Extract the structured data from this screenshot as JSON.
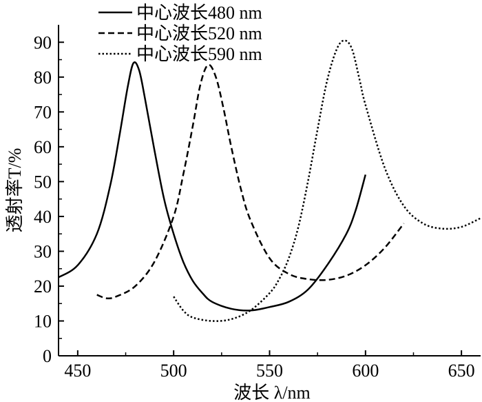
{
  "chart_data": {
    "type": "line",
    "xlabel": "波长 λ/nm",
    "ylabel": "透射率T/%",
    "xlim": [
      440,
      660
    ],
    "ylim": [
      0,
      95
    ],
    "xticks": [
      450,
      500,
      550,
      600,
      650
    ],
    "yticks": [
      0,
      10,
      20,
      30,
      40,
      50,
      60,
      70,
      80,
      90
    ],
    "legend_position": "top-left",
    "grid": false,
    "series": [
      {
        "name": "中心波长480 nm",
        "dash": "solid",
        "x": [
          440,
          450,
          460,
          467,
          472,
          476,
          479,
          482,
          485,
          490,
          495,
          500,
          505,
          510,
          515,
          520,
          530,
          540,
          550,
          560,
          570,
          580,
          590,
          595,
          600
        ],
        "y": [
          22.5,
          26,
          35,
          49,
          64,
          77,
          84,
          82,
          74,
          59,
          45,
          35,
          27,
          21.5,
          18,
          15.5,
          13.5,
          13,
          14,
          15.5,
          19,
          26,
          35,
          42,
          52
        ]
      },
      {
        "name": "中心波长520 nm",
        "dash": "dashed",
        "x": [
          460,
          465,
          470,
          480,
          490,
          500,
          505,
          510,
          514,
          518,
          522,
          526,
          530,
          535,
          540,
          550,
          560,
          570,
          580,
          590,
          600,
          610,
          620
        ],
        "y": [
          17.5,
          16.5,
          17,
          20,
          27,
          40,
          52,
          66,
          78,
          83.5,
          80,
          71,
          60,
          48,
          39,
          28,
          23.5,
          22,
          21.8,
          23,
          26,
          31,
          38
        ]
      },
      {
        "name": "中心波长590 nm",
        "dash": "dotted",
        "x": [
          500,
          505,
          510,
          520,
          530,
          540,
          550,
          555,
          560,
          565,
          570,
          575,
          580,
          585,
          589,
          593,
          597,
          600,
          610,
          620,
          630,
          640,
          650,
          660
        ],
        "y": [
          17,
          13,
          11,
          10,
          10.5,
          13,
          18,
          22,
          28,
          37,
          50,
          65,
          79,
          88,
          90.5,
          88,
          79,
          72,
          54,
          43,
          38,
          36.5,
          37,
          39.5
        ]
      }
    ]
  }
}
